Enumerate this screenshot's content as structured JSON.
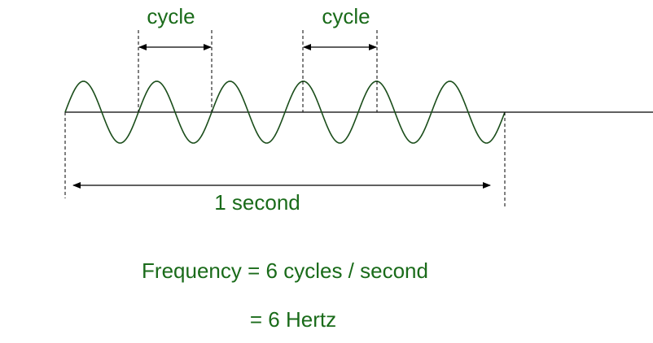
{
  "labels": {
    "cycle_left": "cycle",
    "cycle_right": "cycle",
    "duration": "1 second",
    "frequency": "Frequency = 6 cycles / second",
    "hertz": "= 6 Hertz"
  },
  "wave": {
    "cycles": 6
  },
  "colors": {
    "text": "#1a6b1a",
    "wave": "#1a4d1a",
    "line": "#000000"
  }
}
